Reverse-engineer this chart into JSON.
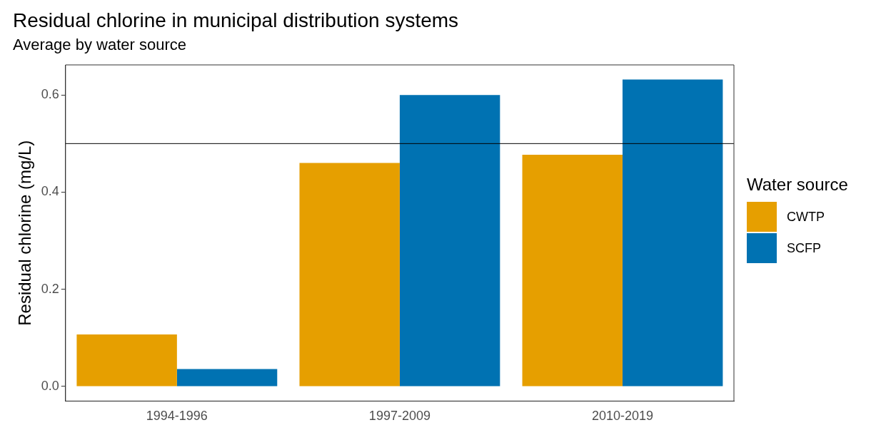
{
  "chart_data": {
    "type": "bar",
    "title": "Residual chlorine in municipal distribution systems",
    "subtitle": "Average by water source",
    "ylabel": "Residual chlorine (mg/L)",
    "legend_title": "Water source",
    "categories": [
      "1994-1996",
      "1997-2009",
      "2010-2019"
    ],
    "series": [
      {
        "name": "CWTP",
        "color": "#e69f00",
        "values": [
          0.107,
          0.46,
          0.477
        ]
      },
      {
        "name": "SCFP",
        "color": "#0072b2",
        "values": [
          0.036,
          0.6,
          0.632
        ]
      }
    ],
    "ylim": [
      -0.03,
      0.662
    ],
    "yticks": [
      {
        "value": 0,
        "label": "0.0"
      },
      0.2,
      0.4,
      0.6
    ],
    "ref_lines": [
      {
        "axis": "y",
        "value": 0.5,
        "color": "#000000"
      }
    ],
    "grid": false,
    "legend": "right"
  }
}
